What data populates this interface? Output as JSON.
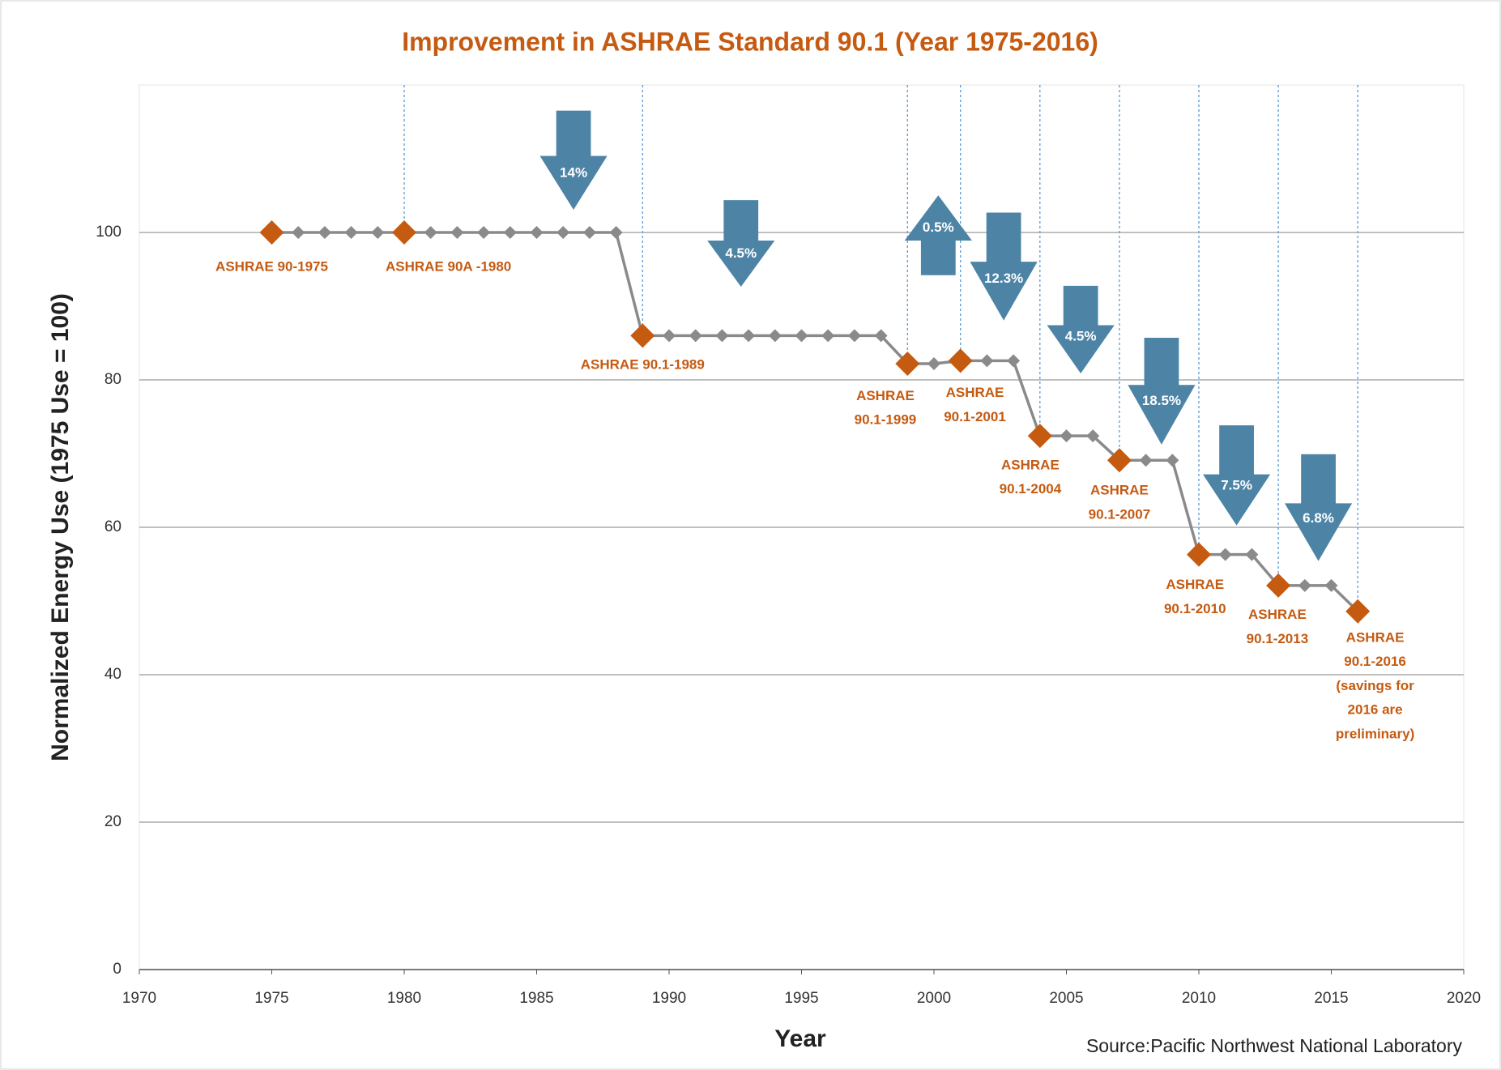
{
  "chart_data": {
    "type": "line",
    "title": "Improvement in ASHRAE Standard 90.1 (Year 1975-2016)",
    "x_label": "Year",
    "y_label": "Normalized Energy Use  (1975 Use = 100)",
    "source": "Source:Pacific Northwest National Laboratory",
    "x": [
      1975,
      1976,
      1977,
      1978,
      1979,
      1980,
      1981,
      1982,
      1983,
      1984,
      1985,
      1986,
      1987,
      1988,
      1989,
      1990,
      1991,
      1992,
      1993,
      1994,
      1995,
      1996,
      1997,
      1998,
      1999,
      2000,
      2001,
      2002,
      2003,
      2004,
      2005,
      2006,
      2007,
      2008,
      2009,
      2010,
      2011,
      2012,
      2013,
      2014,
      2015,
      2016
    ],
    "series": [
      {
        "color": "#8a8a8a",
        "values": [
          100,
          100,
          100,
          100,
          100,
          100,
          100,
          100,
          100,
          100,
          100,
          100,
          100,
          100,
          86,
          86,
          86,
          86,
          86,
          86,
          86,
          86,
          86,
          86,
          82.2,
          82.2,
          82.6,
          82.6,
          82.6,
          72.4,
          72.4,
          72.4,
          69.1,
          69.1,
          69.1,
          56.3,
          56.3,
          56.3,
          52.1,
          52.1,
          52.1,
          48.6
        ]
      }
    ],
    "standards": {
      "color": "#c55a11",
      "x": [
        1975,
        1980,
        1989,
        1999,
        2001,
        2004,
        2007,
        2010,
        2013,
        2016
      ],
      "values": [
        100,
        100,
        86,
        82.2,
        82.6,
        72.4,
        69.1,
        56.3,
        52.1,
        48.6
      ],
      "labels": [
        [
          "ASHRAE 90-1975"
        ],
        [
          "ASHRAE 90A -1980"
        ],
        [
          "ASHRAE 90.1-1989"
        ],
        [
          "ASHRAE",
          "90.1-1999"
        ],
        [
          "ASHRAE",
          "90.1-2001"
        ],
        [
          "ASHRAE",
          "90.1-2004"
        ],
        [
          "ASHRAE",
          "90.1-2007"
        ],
        [
          "ASHRAE",
          "90.1-2010"
        ],
        [
          "ASHRAE",
          "90.1-2013"
        ],
        [
          "ASHRAE",
          "90.1-2016",
          "(savings for",
          "2016 are",
          "preliminary)"
        ]
      ]
    },
    "arrows": {
      "color": "#4d84a6",
      "items": [
        {
          "value": 14,
          "label": "14%",
          "direction": "down"
        },
        {
          "value": 4.5,
          "label": "4.5%",
          "direction": "down"
        },
        {
          "value": 0.5,
          "label": "0.5%",
          "direction": "up"
        },
        {
          "value": 12.3,
          "label": "12.3%",
          "direction": "down"
        },
        {
          "value": 4.5,
          "label": "4.5%",
          "direction": "down"
        },
        {
          "value": 18.5,
          "label": "18.5%",
          "direction": "down"
        },
        {
          "value": 7.5,
          "label": "7.5%",
          "direction": "down"
        },
        {
          "value": 6.8,
          "label": "6.8%",
          "direction": "down"
        }
      ]
    },
    "xlim": [
      1970,
      2020
    ],
    "xticks": [
      1970,
      1975,
      1980,
      1985,
      1990,
      1995,
      2000,
      2005,
      2010,
      2015,
      2020
    ],
    "ylim": [
      0,
      120
    ],
    "yticks": [
      0,
      20,
      40,
      60,
      80,
      100
    ],
    "grid": true
  }
}
